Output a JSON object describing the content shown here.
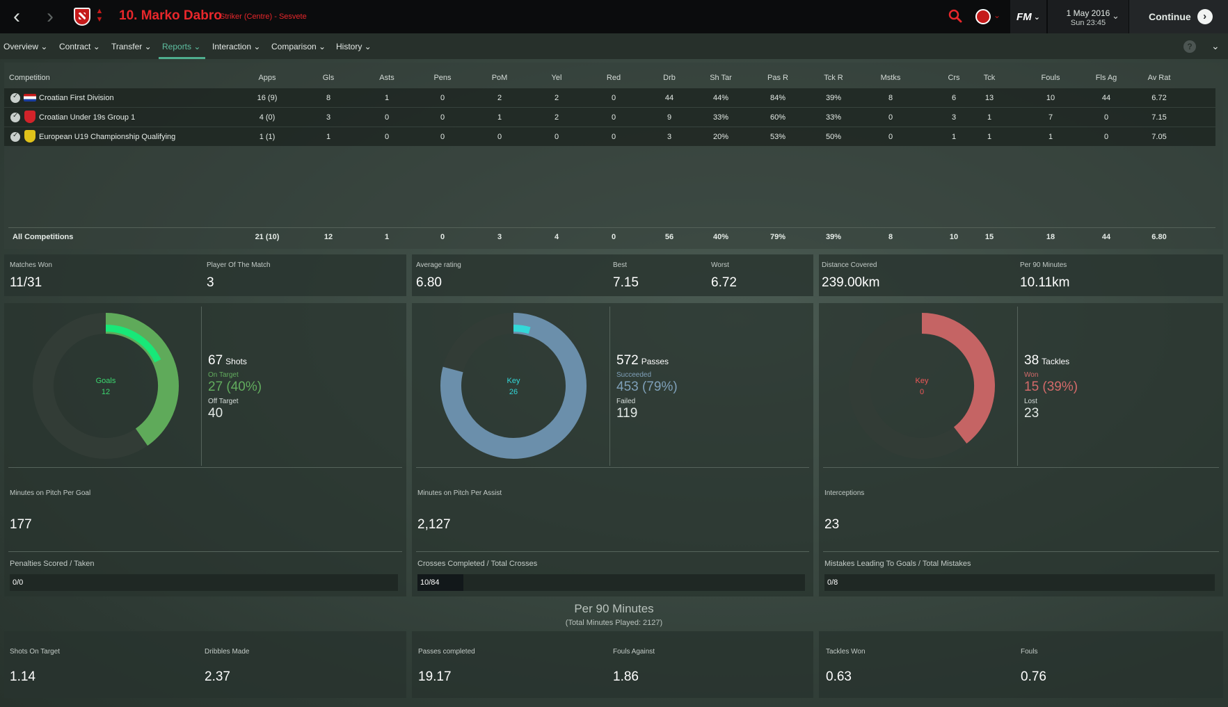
{
  "header": {
    "player_name": "10. Marko Dabro",
    "player_position": "Striker (Centre) - Sesvete",
    "date": "1 May 2016",
    "time": "Sun 23:45",
    "fm_label": "FM",
    "continue_label": "Continue"
  },
  "tabs": [
    {
      "label": "Overview"
    },
    {
      "label": "Contract"
    },
    {
      "label": "Transfer"
    },
    {
      "label": "Reports"
    },
    {
      "label": "Interaction"
    },
    {
      "label": "Comparison"
    },
    {
      "label": "History"
    }
  ],
  "active_tab": "Reports",
  "colors": {
    "brand_red": "#e8272b",
    "goals_green": "#5faa5a",
    "goals_bright": "#18e878",
    "passes_blue": "#6b8fab",
    "key_cyan": "#33d8d8",
    "tackles_red": "#c56464",
    "key_red": "#e85050"
  },
  "table": {
    "headers": [
      "Competition",
      "Apps",
      "Gls",
      "Asts",
      "Pens",
      "PoM",
      "Yel",
      "Red",
      "Drb",
      "Sh Tar",
      "Pas R",
      "Tck R",
      "Mstks",
      "Crs",
      "Tck",
      "Fouls",
      "Fls Ag",
      "Av Rat"
    ],
    "rows": [
      {
        "competition": "Croatian First Division",
        "values": [
          "16 (9)",
          "8",
          "1",
          "0",
          "2",
          "2",
          "0",
          "44",
          "44%",
          "84%",
          "39%",
          "8",
          "6",
          "13",
          "10",
          "44",
          "6.72"
        ]
      },
      {
        "competition": "Croatian Under 19s Group 1",
        "values": [
          "4 (0)",
          "3",
          "0",
          "0",
          "1",
          "2",
          "0",
          "9",
          "33%",
          "60%",
          "33%",
          "0",
          "3",
          "1",
          "7",
          "0",
          "7.15"
        ]
      },
      {
        "competition": "European U19 Championship Qualifying",
        "values": [
          "1 (1)",
          "1",
          "0",
          "0",
          "0",
          "0",
          "0",
          "3",
          "20%",
          "53%",
          "50%",
          "0",
          "1",
          "1",
          "1",
          "0",
          "7.05"
        ]
      }
    ],
    "total": {
      "label": "All Competitions",
      "values": [
        "21 (10)",
        "12",
        "1",
        "0",
        "3",
        "4",
        "0",
        "56",
        "40%",
        "79%",
        "39%",
        "8",
        "10",
        "15",
        "18",
        "44",
        "6.80"
      ]
    }
  },
  "summary": {
    "matches_won": {
      "label": "Matches Won",
      "value": "11/31"
    },
    "pom": {
      "label": "Player Of The Match",
      "value": "3"
    },
    "avg_rating": {
      "label": "Average rating",
      "value": "6.80"
    },
    "best": {
      "label": "Best",
      "value": "7.15"
    },
    "worst": {
      "label": "Worst",
      "value": "6.72"
    },
    "distance": {
      "label": "Distance Covered",
      "value": "239.00km"
    },
    "per90": {
      "label": "Per 90 Minutes",
      "value": "10.11km"
    }
  },
  "shots": {
    "center_label": "Goals",
    "center_value": "12",
    "total": "67",
    "total_label": "Shots",
    "on_label": "On Target",
    "on_value": "27 (40%)",
    "off_label": "Off Target",
    "off_value": "40",
    "on_fraction": 0.403,
    "goal_fraction": 0.179,
    "mins_label": "Minutes on Pitch Per Goal",
    "mins_value": "177",
    "bar_label": "Penalties Scored / Taken",
    "bar_value": "0/0",
    "bar_fraction": 0
  },
  "passes": {
    "center_label": "Key",
    "center_value": "26",
    "total": "572",
    "total_label": "Passes",
    "on_label": "Succeeded",
    "on_value": "453 (79%)",
    "off_label": "Failed",
    "off_value": "119",
    "on_fraction": 0.792,
    "goal_fraction": 0.045,
    "mins_label": "Minutes on Pitch Per Assist",
    "mins_value": "2,127",
    "bar_label": "Crosses Completed / Total Crosses",
    "bar_value": "10/84",
    "bar_fraction": 0.119
  },
  "tackles": {
    "center_label": "Key",
    "center_value": "0",
    "total": "38",
    "total_label": "Tackles",
    "on_label": "Won",
    "on_value": "15 (39%)",
    "off_label": "Lost",
    "off_value": "23",
    "on_fraction": 0.395,
    "goal_fraction": 0,
    "mins_label": "Interceptions",
    "mins_value": "23",
    "bar_label": "Mistakes Leading To Goals / Total Mistakes",
    "bar_value": "0/8",
    "bar_fraction": 0
  },
  "per90": {
    "title": "Per 90 Minutes",
    "subtitle": "(Total Minutes Played: 2127)",
    "items": [
      {
        "label": "Shots On Target",
        "value": "1.14"
      },
      {
        "label": "Dribbles Made",
        "value": "2.37"
      },
      {
        "label": "Passes completed",
        "value": "19.17"
      },
      {
        "label": "Fouls Against",
        "value": "1.86"
      },
      {
        "label": "Tackles Won",
        "value": "0.63"
      },
      {
        "label": "Fouls",
        "value": "0.76"
      }
    ]
  }
}
